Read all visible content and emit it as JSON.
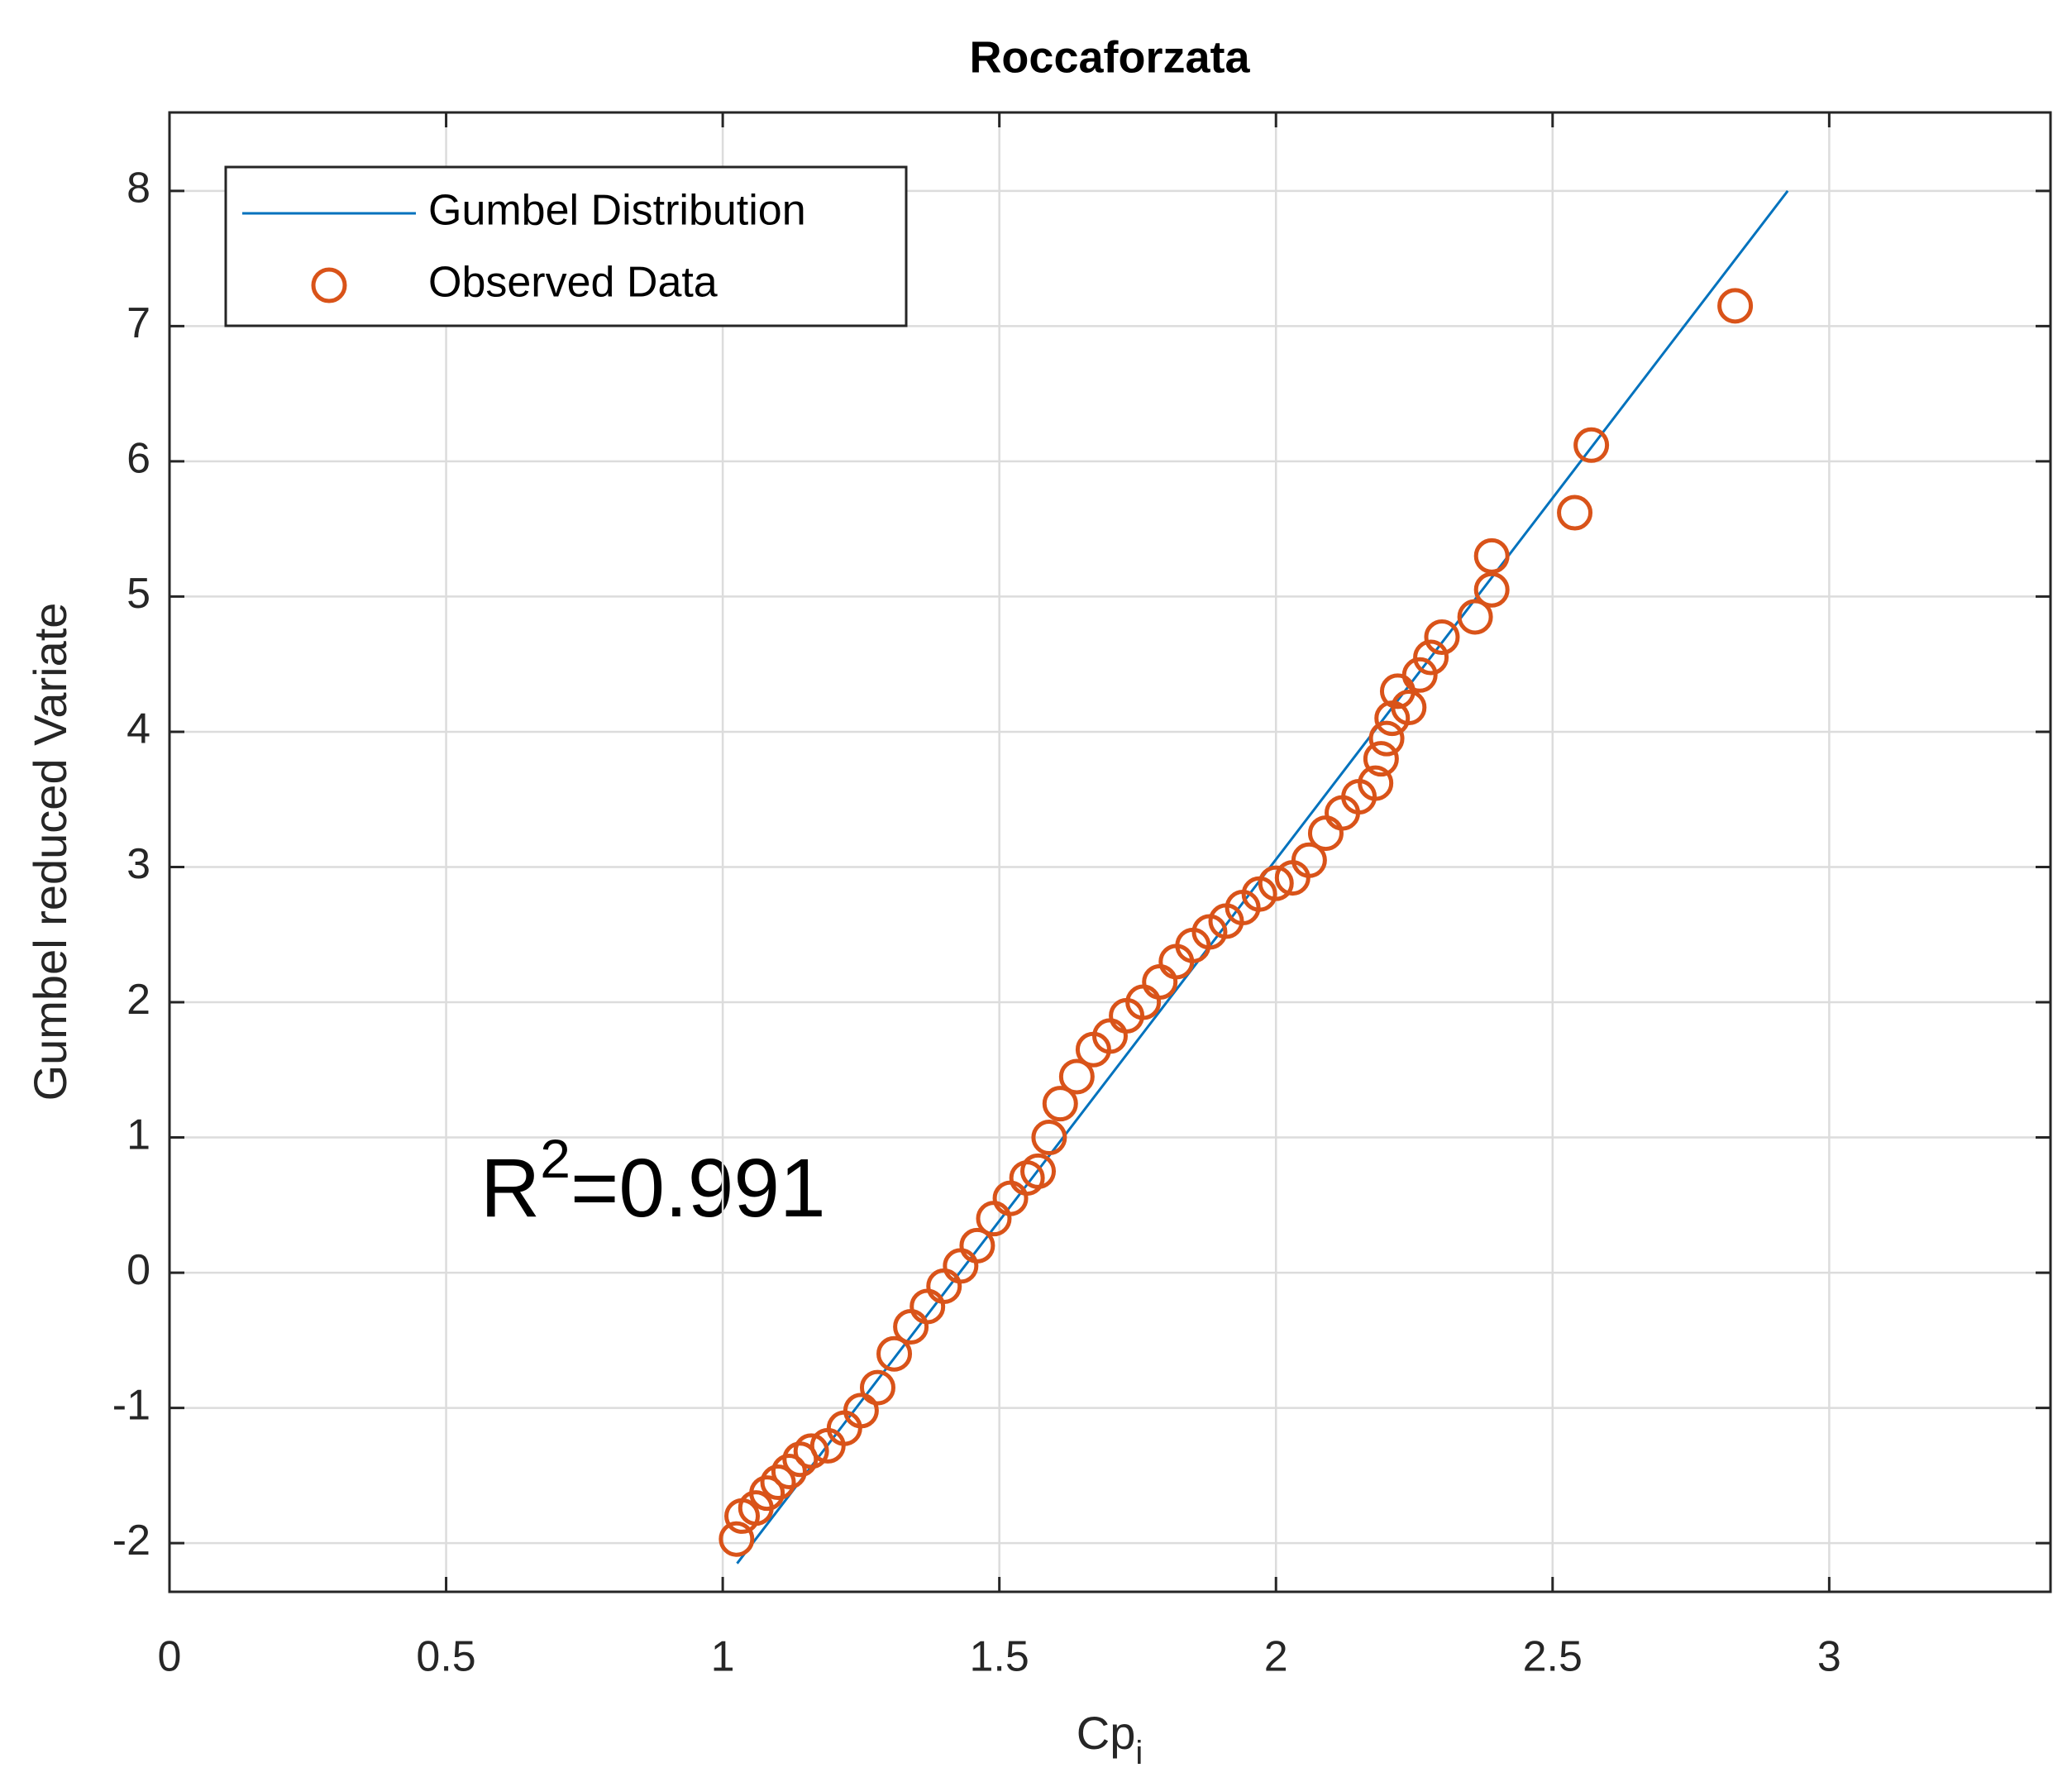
{
  "chart_data": {
    "type": "scatter",
    "title": "Roccaforzata",
    "xlabel": {
      "base": "Cp",
      "sub": "i"
    },
    "ylabel": "Gumbel reduced Variate",
    "annotation": {
      "base": "R",
      "sup": "2",
      "rest": "=0.991"
    },
    "xlim": [
      0,
      3.4
    ],
    "ylim": [
      -2.36,
      8.58
    ],
    "xticks": [
      0,
      0.5,
      1,
      1.5,
      2,
      2.5,
      3
    ],
    "yticks": [
      -2,
      -1,
      0,
      1,
      2,
      3,
      4,
      5,
      6,
      7,
      8
    ],
    "grid": true,
    "legend": "upper left",
    "series": [
      {
        "name": "Gumbel Distribution",
        "type": "line",
        "color": "#0072BD",
        "x": [
          1.026,
          2.925
        ],
        "values": [
          -2.15,
          8.0
        ]
      },
      {
        "name": "Observed Data",
        "type": "scatter",
        "color": "#D95319",
        "x": [
          1.025,
          1.035,
          1.06,
          1.08,
          1.1,
          1.12,
          1.14,
          1.16,
          1.19,
          1.22,
          1.25,
          1.28,
          1.31,
          1.34,
          1.37,
          1.4,
          1.43,
          1.46,
          1.49,
          1.52,
          1.55,
          1.57,
          1.59,
          1.61,
          1.64,
          1.67,
          1.7,
          1.73,
          1.76,
          1.79,
          1.82,
          1.85,
          1.88,
          1.91,
          1.94,
          1.97,
          2.0,
          2.03,
          2.06,
          2.09,
          2.12,
          2.15,
          2.18,
          2.19,
          2.2,
          2.21,
          2.22,
          2.24,
          2.26,
          2.28,
          2.3,
          2.36,
          2.39,
          2.39,
          2.54,
          2.57,
          2.83
        ],
        "values": [
          -1.97,
          -1.8,
          -1.74,
          -1.63,
          -1.55,
          -1.47,
          -1.38,
          -1.32,
          -1.28,
          -1.15,
          -1.02,
          -0.85,
          -0.6,
          -0.4,
          -0.25,
          -0.1,
          0.05,
          0.2,
          0.4,
          0.55,
          0.7,
          0.75,
          1.0,
          1.25,
          1.45,
          1.65,
          1.75,
          1.9,
          2.0,
          2.15,
          2.3,
          2.42,
          2.52,
          2.6,
          2.7,
          2.8,
          2.88,
          2.92,
          3.05,
          3.25,
          3.4,
          3.52,
          3.62,
          3.8,
          3.95,
          4.1,
          4.3,
          4.18,
          4.42,
          4.55,
          4.7,
          4.85,
          5.05,
          5.3,
          5.62,
          6.12,
          7.15
        ]
      }
    ]
  }
}
